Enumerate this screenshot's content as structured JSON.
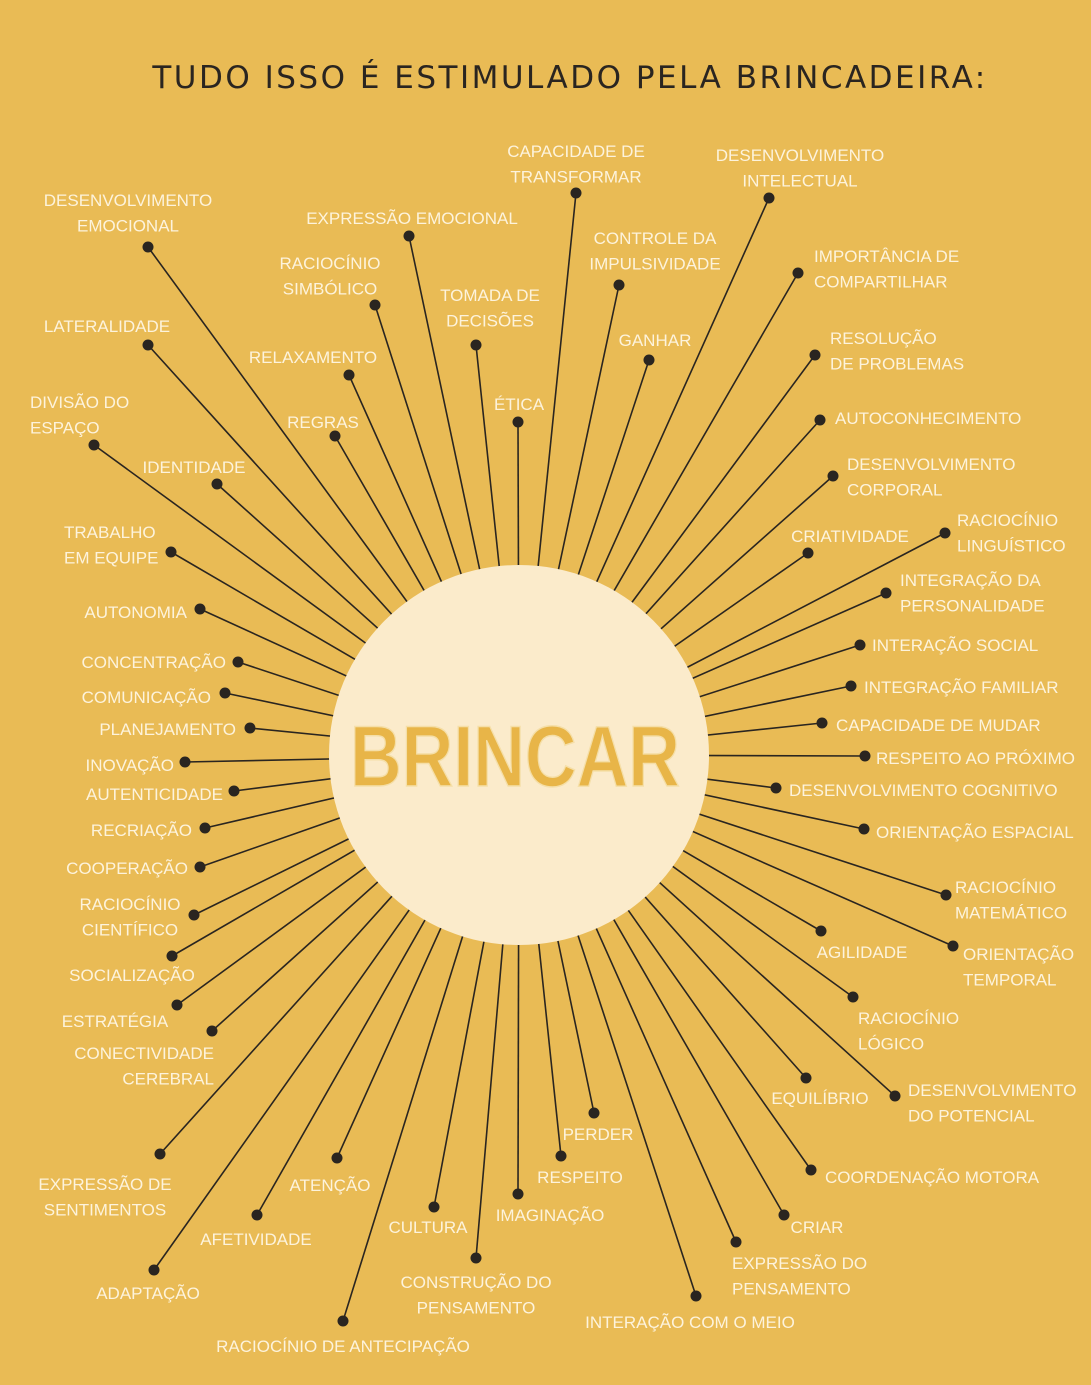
{
  "title": "TUDO ISSO É ESTIMULADO PELA BRINCADEIRA:",
  "center": {
    "logo_text": "BRINCAR"
  },
  "colors": {
    "background": "#E9BB55",
    "circle": "#FBEBCB",
    "line": "#2A2520",
    "label": "#FDF3DC",
    "logo": "#E8B548"
  },
  "items": [
    {
      "lines": [
        "DESENVOLVIMENTO",
        "EMOCIONAL"
      ]
    },
    {
      "lines": [
        "EXPRESSÃO EMOCIONAL"
      ]
    },
    {
      "lines": [
        "CAPACIDADE DE",
        "TRANSFORMAR"
      ]
    },
    {
      "lines": [
        "DESENVOLVIMENTO",
        "INTELECTUAL"
      ]
    },
    {
      "lines": [
        "RACIOCÍNIO",
        "SIMBÓLICO"
      ]
    },
    {
      "lines": [
        "TOMADA DE",
        "DECISÕES"
      ]
    },
    {
      "lines": [
        "CONTROLE DA",
        "IMPULSIVIDADE"
      ]
    },
    {
      "lines": [
        "IMPORTÂNCIA DE",
        "COMPARTILHAR"
      ]
    },
    {
      "lines": [
        "LATERALIDADE"
      ]
    },
    {
      "lines": [
        "RELAXAMENTO"
      ]
    },
    {
      "lines": [
        "GANHAR"
      ]
    },
    {
      "lines": [
        "RESOLUÇÃO",
        "DE PROBLEMAS"
      ]
    },
    {
      "lines": [
        "DIVISÃO DO",
        "ESPAÇO"
      ]
    },
    {
      "lines": [
        "REGRAS"
      ]
    },
    {
      "lines": [
        "ÉTICA"
      ]
    },
    {
      "lines": [
        "AUTOCONHECIMENTO"
      ]
    },
    {
      "lines": [
        "IDENTIDADE"
      ]
    },
    {
      "lines": [
        "DESENVOLVIMENTO",
        "CORPORAL"
      ]
    },
    {
      "lines": [
        "TRABALHO",
        "EM EQUIPE"
      ]
    },
    {
      "lines": [
        "CRIATIVIDADE"
      ]
    },
    {
      "lines": [
        "RACIOCÍNIO",
        "LINGUÍSTICO"
      ]
    },
    {
      "lines": [
        "INTEGRAÇÃO DA",
        "PERSONALIDADE"
      ]
    },
    {
      "lines": [
        "AUTONOMIA"
      ]
    },
    {
      "lines": [
        "INTERAÇÃO SOCIAL"
      ]
    },
    {
      "lines": [
        "CONCENTRAÇÃO"
      ]
    },
    {
      "lines": [
        "INTEGRAÇÃO FAMILIAR"
      ]
    },
    {
      "lines": [
        "COMUNICAÇÃO"
      ]
    },
    {
      "lines": [
        "CAPACIDADE DE MUDAR"
      ]
    },
    {
      "lines": [
        "PLANEJAMENTO"
      ]
    },
    {
      "lines": [
        "RESPEITO AO PRÓXIMO"
      ]
    },
    {
      "lines": [
        "INOVAÇÃO"
      ]
    },
    {
      "lines": [
        "DESENVOLVIMENTO COGNITIVO"
      ]
    },
    {
      "lines": [
        "AUTENTICIDADE"
      ]
    },
    {
      "lines": [
        "ORIENTAÇÃO ESPACIAL"
      ]
    },
    {
      "lines": [
        "RECRIAÇÃO"
      ]
    },
    {
      "lines": [
        "COOPERAÇÃO"
      ]
    },
    {
      "lines": [
        "RACIOCÍNIO",
        "MATEMÁTICO"
      ]
    },
    {
      "lines": [
        "RACIOCÍNIO",
        "CIENTÍFICO"
      ]
    },
    {
      "lines": [
        "AGILIDADE"
      ]
    },
    {
      "lines": [
        "ORIENTAÇÃO",
        "TEMPORAL"
      ]
    },
    {
      "lines": [
        "SOCIALIZAÇÃO"
      ]
    },
    {
      "lines": [
        "ESTRATÉGIA"
      ]
    },
    {
      "lines": [
        "CONECTIVIDADE",
        "CEREBRAL"
      ]
    },
    {
      "lines": [
        "RACIOCÍNIO",
        "LÓGICO"
      ]
    },
    {
      "lines": [
        "EQUILÍBRIO"
      ]
    },
    {
      "lines": [
        "DESENVOLVIMENTO",
        "DO POTENCIAL"
      ]
    },
    {
      "lines": [
        "EXPRESSÃO DE",
        "SENTIMENTOS"
      ]
    },
    {
      "lines": [
        "ATENÇÃO"
      ]
    },
    {
      "lines": [
        "PERDER"
      ]
    },
    {
      "lines": [
        "RESPEITO"
      ]
    },
    {
      "lines": [
        "COORDENAÇÃO MOTORA"
      ]
    },
    {
      "lines": [
        "AFETIVIDADE"
      ]
    },
    {
      "lines": [
        "CULTURA"
      ]
    },
    {
      "lines": [
        "IMAGINAÇÃO"
      ]
    },
    {
      "lines": [
        "CRIAR"
      ]
    },
    {
      "lines": [
        "ADAPTAÇÃO"
      ]
    },
    {
      "lines": [
        "CONSTRUÇÃO DO",
        "PENSAMENTO"
      ]
    },
    {
      "lines": [
        "EXPRESSÃO DO",
        "PENSAMENTO"
      ]
    },
    {
      "lines": [
        "INTERAÇÃO COM O MEIO"
      ]
    },
    {
      "lines": [
        "RACIOCÍNIO DE ANTECIPAÇÃO"
      ]
    }
  ]
}
